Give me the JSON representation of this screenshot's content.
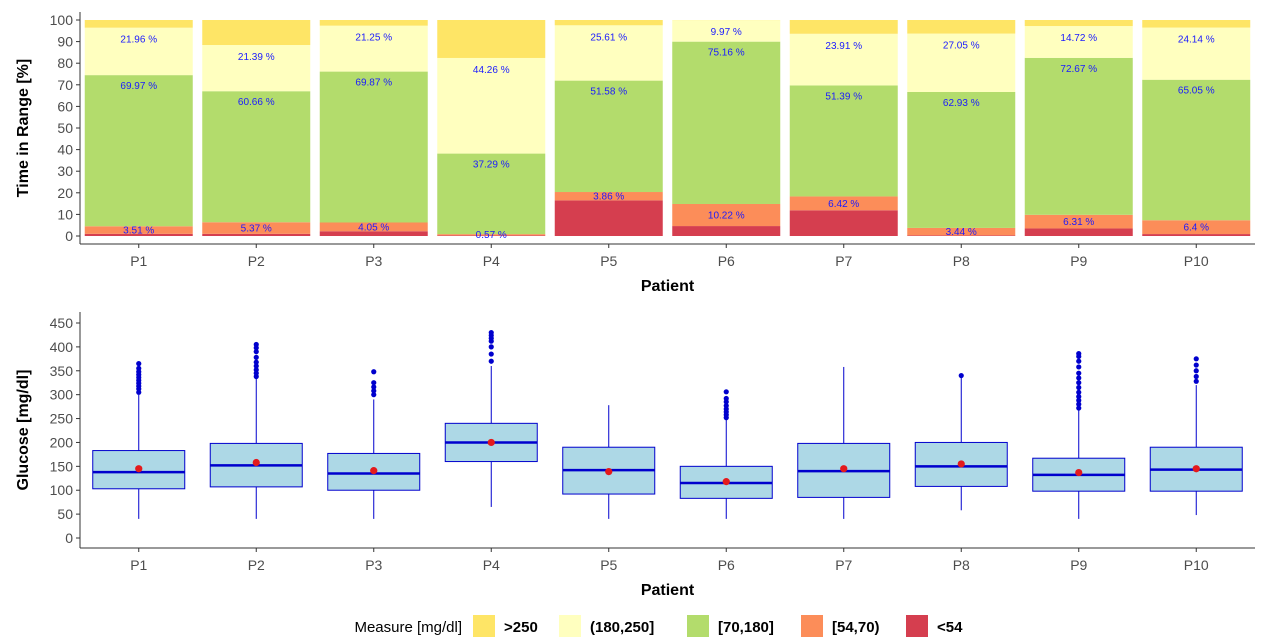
{
  "chart_data": [
    {
      "type": "bar",
      "stacked": true,
      "xlabel": "Patient",
      "ylabel": "Time in Range [%]",
      "ylim": [
        0,
        100
      ],
      "yticks": [
        "0",
        "10",
        "20",
        "30",
        "40",
        "50",
        "60",
        "70",
        "80",
        "90",
        "100"
      ],
      "categories": [
        "P1",
        "P2",
        "P3",
        "P4",
        "P5",
        "P6",
        "P7",
        "P8",
        "P9",
        "P10"
      ],
      "series": [
        {
          "name": "<54",
          "color": "#d53e4f",
          "values": [
            1.0,
            1.0,
            2.2,
            0.3,
            16.5,
            4.6,
            11.9,
            0.3,
            3.5,
            0.9
          ]
        },
        {
          "name": "[54,70)",
          "color": "#fc8d59",
          "values": [
            3.51,
            5.37,
            4.05,
            0.57,
            3.86,
            10.22,
            6.42,
            3.44,
            6.31,
            6.4
          ]
        },
        {
          "name": "[70,180]",
          "color": "#b3dc6c",
          "values": [
            69.97,
            60.66,
            69.87,
            37.29,
            51.58,
            75.16,
            51.39,
            62.93,
            72.67,
            65.05
          ]
        },
        {
          "name": "(180,250]",
          "color": "#ffffbf",
          "values": [
            21.96,
            21.39,
            21.25,
            44.26,
            25.61,
            9.97,
            23.91,
            27.05,
            14.72,
            24.14
          ]
        },
        {
          "name": ">250",
          "color": "#fee566",
          "values": [
            3.56,
            11.58,
            2.63,
            17.58,
            2.45,
            0.05,
            6.38,
            6.28,
            2.8,
            3.51
          ]
        }
      ],
      "labels": {
        "low": [
          "3.51 %",
          "5.37 %",
          "4.05 %",
          "0.57 %",
          "3.86 %",
          "10.22 %",
          "6.42 %",
          "3.44 %",
          "6.31 %",
          "6.4 %"
        ],
        "inrange": [
          "69.97 %",
          "60.66 %",
          "69.87 %",
          "37.29 %",
          "51.58 %",
          "75.16 %",
          "51.39 %",
          "62.93 %",
          "72.67 %",
          "65.05 %"
        ],
        "high": [
          "21.96 %",
          "21.39 %",
          "21.25 %",
          "44.26 %",
          "25.61 %",
          "9.97 %",
          "23.91 %",
          "27.05 %",
          "14.72 %",
          "24.14 %"
        ]
      },
      "legend": {
        "title": "Measure [mg/dl]",
        "position": "bottom",
        "entries": [
          ">250",
          "(180,250]",
          "[70,180]",
          "[54,70)",
          "<54"
        ]
      }
    },
    {
      "type": "box",
      "xlabel": "Patient",
      "ylabel": "Glucose [mg/dl]",
      "ylim": [
        0,
        450
      ],
      "yticks": [
        "0",
        "50",
        "100",
        "150",
        "200",
        "250",
        "300",
        "350",
        "400",
        "450"
      ],
      "categories": [
        "P1",
        "P2",
        "P3",
        "P4",
        "P5",
        "P6",
        "P7",
        "P8",
        "P9",
        "P10"
      ],
      "box_color": "#add8e6",
      "line_color": "#0000cd",
      "mean_color": "#e41a1c",
      "boxes": [
        {
          "q1": 103,
          "median": 138,
          "q3": 183,
          "whisker_low": 40,
          "whisker_high": 300,
          "mean": 145,
          "outliers": [
            305,
            312,
            318,
            324,
            330,
            336,
            342,
            348,
            355,
            365
          ]
        },
        {
          "q1": 107,
          "median": 152,
          "q3": 198,
          "whisker_low": 40,
          "whisker_high": 335,
          "mean": 158,
          "outliers": [
            338,
            345,
            352,
            360,
            368,
            378,
            390,
            398,
            405
          ]
        },
        {
          "q1": 100,
          "median": 135,
          "q3": 177,
          "whisker_low": 40,
          "whisker_high": 290,
          "mean": 141,
          "outliers": [
            300,
            308,
            316,
            325,
            348
          ]
        },
        {
          "q1": 160,
          "median": 200,
          "q3": 240,
          "whisker_low": 65,
          "whisker_high": 360,
          "mean": 200,
          "outliers": [
            370,
            385,
            400,
            412,
            418,
            424,
            430
          ]
        },
        {
          "q1": 92,
          "median": 142,
          "q3": 190,
          "whisker_low": 40,
          "whisker_high": 278,
          "mean": 139,
          "outliers": []
        },
        {
          "q1": 83,
          "median": 115,
          "q3": 150,
          "whisker_low": 40,
          "whisker_high": 248,
          "mean": 118,
          "outliers": [
            252,
            258,
            264,
            270,
            277,
            285,
            292,
            306
          ]
        },
        {
          "q1": 85,
          "median": 140,
          "q3": 198,
          "whisker_low": 40,
          "whisker_high": 358,
          "mean": 145,
          "outliers": []
        },
        {
          "q1": 108,
          "median": 150,
          "q3": 200,
          "whisker_low": 58,
          "whisker_high": 340,
          "mean": 155,
          "outliers": [
            340
          ]
        },
        {
          "q1": 98,
          "median": 132,
          "q3": 167,
          "whisker_low": 40,
          "whisker_high": 268,
          "mean": 137,
          "outliers": [
            272,
            280,
            288,
            296,
            305,
            315,
            325,
            335,
            345,
            358,
            370,
            380,
            386
          ]
        },
        {
          "q1": 98,
          "median": 143,
          "q3": 190,
          "whisker_low": 48,
          "whisker_high": 320,
          "mean": 145,
          "outliers": [
            328,
            338,
            350,
            362,
            375
          ]
        }
      ]
    }
  ]
}
